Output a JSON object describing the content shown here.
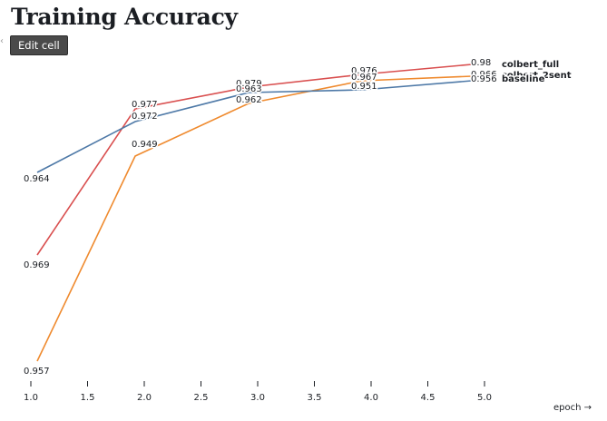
{
  "page": {
    "title": "Training Accuracy",
    "edit_button": "Edit cell"
  },
  "chart_data": {
    "type": "line",
    "title": "Training Accuracy",
    "xlabel": "epoch →",
    "ylabel": "",
    "x": [
      1,
      2,
      3,
      4,
      5
    ],
    "xticks": [
      "1.0",
      "1.5",
      "2.0",
      "2.5",
      "3.0",
      "3.5",
      "4.0",
      "4.5",
      "5.0"
    ],
    "xlim": [
      1,
      5
    ],
    "grid": false,
    "legend": "end-of-line labels",
    "series": [
      {
        "name": "colbert_full",
        "color": "#d94f4f",
        "values": [
          0.969,
          0.977,
          0.979,
          0.976,
          0.98
        ],
        "labels": [
          "0.969",
          "0.977",
          "0.979",
          "0.976",
          "0.98"
        ]
      },
      {
        "name": "colbert_2sent",
        "color": "#ef8a2e",
        "values": [
          0.957,
          0.949,
          0.962,
          0.967,
          0.966
        ],
        "labels": [
          "0.957",
          "0.949",
          "0.962",
          "0.967",
          "0.966"
        ]
      },
      {
        "name": "baseline",
        "color": "#4e79a7",
        "values": [
          0.964,
          0.972,
          0.963,
          0.951,
          0.956
        ],
        "labels": [
          "0.964",
          "0.972",
          "0.963",
          "0.951",
          "0.956"
        ]
      }
    ]
  }
}
